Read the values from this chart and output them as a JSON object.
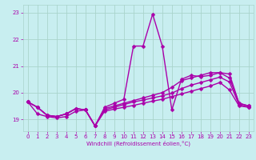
{
  "title": "",
  "xlabel": "Windchill (Refroidissement éolien,°C)",
  "xlim": [
    -0.5,
    23.5
  ],
  "ylim": [
    18.55,
    23.3
  ],
  "yticks": [
    19,
    20,
    21,
    22,
    23
  ],
  "xticks": [
    0,
    1,
    2,
    3,
    4,
    5,
    6,
    7,
    8,
    9,
    10,
    11,
    12,
    13,
    14,
    15,
    16,
    17,
    18,
    19,
    20,
    21,
    22,
    23
  ],
  "bg_color": "#c8eef0",
  "grid_color": "#aad4cc",
  "line_color": "#aa00aa",
  "lines": [
    {
      "x": [
        0,
        1,
        2,
        3,
        4,
        5,
        6,
        7,
        8,
        9,
        10,
        11,
        12,
        13,
        14,
        15,
        16,
        17,
        18,
        19,
        20,
        21,
        22,
        23
      ],
      "y": [
        19.65,
        19.45,
        19.15,
        19.1,
        19.2,
        19.4,
        19.35,
        18.75,
        19.45,
        19.6,
        19.75,
        21.75,
        21.75,
        22.95,
        21.75,
        19.35,
        20.5,
        20.65,
        20.6,
        20.65,
        20.75,
        20.7,
        19.6,
        19.5
      ]
    },
    {
      "x": [
        0,
        1,
        2,
        3,
        4,
        5,
        6,
        7,
        8,
        9,
        10,
        11,
        12,
        13,
        14,
        15,
        16,
        17,
        18,
        19,
        20,
        21,
        22,
        23
      ],
      "y": [
        19.65,
        19.45,
        19.15,
        19.1,
        19.2,
        19.4,
        19.35,
        18.75,
        19.4,
        19.5,
        19.6,
        19.7,
        19.8,
        19.9,
        20.0,
        20.2,
        20.45,
        20.55,
        20.65,
        20.75,
        20.75,
        20.55,
        19.6,
        19.5
      ]
    },
    {
      "x": [
        0,
        1,
        2,
        3,
        4,
        5,
        6,
        7,
        8,
        9,
        10,
        11,
        12,
        13,
        14,
        15,
        16,
        17,
        18,
        19,
        20,
        21,
        22,
        23
      ],
      "y": [
        19.65,
        19.45,
        19.15,
        19.1,
        19.2,
        19.4,
        19.35,
        18.75,
        19.35,
        19.45,
        19.55,
        19.65,
        19.72,
        19.8,
        19.88,
        19.98,
        20.15,
        20.28,
        20.38,
        20.48,
        20.58,
        20.4,
        19.55,
        19.45
      ]
    },
    {
      "x": [
        0,
        1,
        2,
        3,
        4,
        5,
        6,
        7,
        8,
        9,
        10,
        11,
        12,
        13,
        14,
        15,
        16,
        17,
        18,
        19,
        20,
        21,
        22,
        23
      ],
      "y": [
        19.65,
        19.2,
        19.1,
        19.05,
        19.1,
        19.3,
        19.35,
        18.75,
        19.3,
        19.38,
        19.45,
        19.52,
        19.6,
        19.68,
        19.75,
        19.85,
        19.95,
        20.05,
        20.15,
        20.25,
        20.38,
        20.1,
        19.5,
        19.45
      ]
    }
  ],
  "marker": "D",
  "markersize": 2.5,
  "linewidth": 1.0
}
